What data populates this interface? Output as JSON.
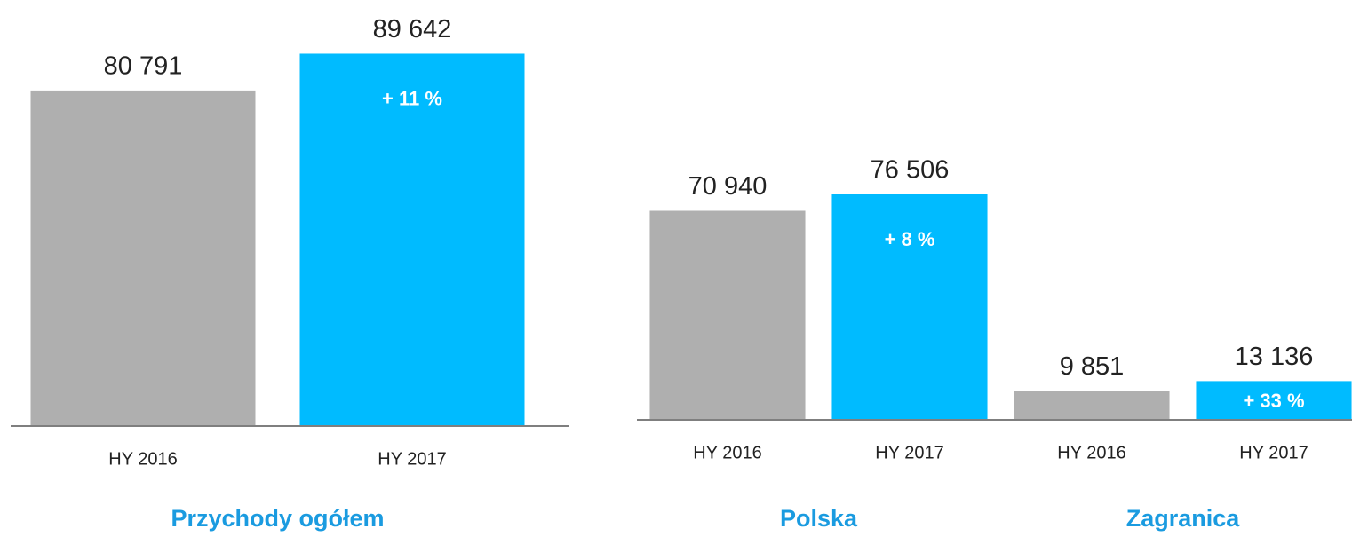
{
  "chart_data": [
    {
      "type": "bar",
      "categories": [
        "HY 2016",
        "HY 2017"
      ],
      "values": [
        80791,
        89642
      ],
      "value_labels": [
        "80 791",
        "89 642"
      ],
      "bar_labels": [
        null,
        "+ 11 %"
      ],
      "colors": [
        "#afafaf",
        "#00bbff"
      ],
      "group_labels": [
        "Przychody ogółem"
      ],
      "ylim": [
        0,
        100000
      ]
    },
    {
      "type": "bar",
      "categories": [
        "HY 2016",
        "HY 2017",
        "HY 2016",
        "HY 2017"
      ],
      "values": [
        70940,
        76506,
        9851,
        13136
      ],
      "value_labels": [
        "70 940",
        "76 506",
        "9 851",
        "13 136"
      ],
      "bar_labels": [
        null,
        "+ 8 %",
        null,
        "+ 33 %"
      ],
      "colors": [
        "#afafaf",
        "#00bbff",
        "#afafaf",
        "#00bbff"
      ],
      "group_labels": [
        "Polska",
        "Zagranica"
      ],
      "ylim": [
        0,
        100000
      ]
    }
  ]
}
